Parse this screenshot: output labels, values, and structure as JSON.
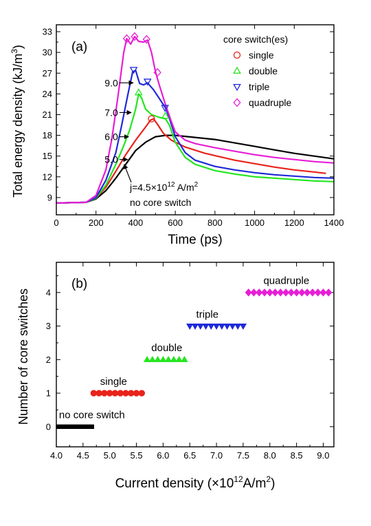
{
  "chart_data": [
    {
      "type": "line",
      "panel_label": "(a)",
      "xlabel": "Time (ps)",
      "ylabel": "Total energy density (kJ/m",
      "ylabel_sup": "3",
      "ylabel_close": ")",
      "xlim": [
        0,
        1400
      ],
      "ylim": [
        6.5,
        34
      ],
      "xticks": [
        0,
        200,
        400,
        600,
        800,
        1000,
        1200,
        1400
      ],
      "yticks": [
        9,
        12,
        15,
        18,
        21,
        24,
        27,
        30,
        33
      ],
      "legend_title": "core switch(es)",
      "legend_position": "top-right",
      "series": [
        {
          "name": "",
          "color": "#000000",
          "marker": "none",
          "x": [
            0,
            150,
            200,
            250,
            300,
            350,
            400,
            450,
            500,
            550,
            600,
            700,
            800,
            900,
            1000,
            1100,
            1200,
            1300,
            1400
          ],
          "y": [
            8.2,
            8.3,
            8.8,
            10.0,
            11.8,
            13.8,
            15.8,
            17.0,
            17.8,
            18.0,
            18.0,
            17.7,
            17.4,
            16.9,
            16.4,
            15.9,
            15.4,
            15.0,
            14.6
          ]
        },
        {
          "name": "single",
          "color": "#e8231a",
          "marker": "circle",
          "x": [
            0,
            150,
            200,
            250,
            300,
            350,
            400,
            450,
            475,
            490,
            510,
            540,
            580,
            650,
            750,
            900,
            1000,
            1100,
            1200,
            1300,
            1360
          ],
          "y": [
            8.2,
            8.3,
            8.9,
            10.5,
            12.8,
            15.2,
            17.3,
            19.2,
            20.2,
            20.4,
            19.6,
            18.3,
            17.3,
            16.3,
            15.4,
            14.4,
            13.9,
            13.4,
            13.0,
            12.7,
            12.5
          ],
          "marker_x": [
            480
          ],
          "marker_y": [
            20.4
          ]
        },
        {
          "name": "double",
          "color": "#22e61e",
          "marker": "triangle-up",
          "x": [
            0,
            150,
            200,
            250,
            300,
            340,
            370,
            400,
            415,
            430,
            450,
            480,
            520,
            550,
            570,
            600,
            650,
            700,
            800,
            900,
            1000,
            1100,
            1200,
            1300,
            1400
          ],
          "y": [
            8.2,
            8.3,
            8.9,
            10.8,
            13.8,
            16.5,
            18.8,
            21.8,
            24.0,
            23.4,
            21.8,
            21.0,
            20.6,
            20.4,
            19.5,
            17.0,
            14.8,
            13.8,
            12.9,
            12.4,
            12.0,
            11.8,
            11.6,
            11.4,
            11.3
          ],
          "marker_x": [
            415,
            550
          ],
          "marker_y": [
            24.2,
            20.8
          ]
        },
        {
          "name": "triple",
          "color": "#1f2ad8",
          "marker": "triangle-down",
          "x": [
            0,
            150,
            200,
            250,
            300,
            330,
            360,
            385,
            400,
            420,
            440,
            460,
            490,
            520,
            550,
            570,
            600,
            650,
            700,
            800,
            900,
            1000,
            1100,
            1200,
            1300,
            1400
          ],
          "y": [
            8.2,
            8.3,
            9.0,
            11.5,
            15.5,
            19.5,
            23.8,
            27.2,
            27.4,
            25.5,
            25.3,
            25.6,
            24.6,
            23.3,
            22.0,
            20.5,
            17.8,
            15.5,
            14.4,
            13.5,
            13.0,
            12.6,
            12.3,
            12.1,
            11.9,
            11.8
          ],
          "marker_x": [
            390,
            460,
            548
          ],
          "marker_y": [
            27.5,
            25.8,
            22.0
          ]
        },
        {
          "name": "quadruple",
          "color": "#e61ed6",
          "marker": "diamond",
          "x": [
            0,
            150,
            200,
            250,
            280,
            310,
            340,
            355,
            375,
            395,
            415,
            440,
            460,
            480,
            500,
            520,
            550,
            580,
            600,
            650,
            700,
            800,
            900,
            1000,
            1100,
            1200,
            1300,
            1400
          ],
          "y": [
            8.2,
            8.3,
            9.3,
            13.0,
            17.5,
            23.5,
            30.0,
            32.0,
            31.2,
            32.3,
            31.6,
            31.5,
            31.8,
            30.0,
            27.2,
            25.2,
            22.5,
            20.0,
            18.5,
            17.3,
            16.8,
            16.2,
            15.7,
            15.2,
            14.8,
            14.5,
            14.2,
            14.0
          ],
          "marker_x": [
            355,
            395,
            455,
            510
          ],
          "marker_y": [
            32.0,
            32.3,
            31.9,
            27.1
          ]
        }
      ],
      "annotations": [
        {
          "text": "9.0",
          "x": 318,
          "y": 25.6,
          "arrow_to_x": 388,
          "arrow_to_y": 25.6
        },
        {
          "text": "7.0",
          "x": 318,
          "y": 21.3,
          "arrow_to_x": 378,
          "arrow_to_y": 21.3
        },
        {
          "text": "6.0",
          "x": 318,
          "y": 17.8,
          "arrow_to_x": 365,
          "arrow_to_y": 17.8
        },
        {
          "text": "5.0",
          "x": 318,
          "y": 14.5,
          "arrow_to_x": 360,
          "arrow_to_y": 14.5
        },
        {
          "text_prefix": "j=4.5×10",
          "text_sup": "12",
          "text_mid": " A/m",
          "text_sup2": "2",
          "line2": "no core switch",
          "x": 440,
          "y": 10.5,
          "arrow_from_x": 440,
          "arrow_from_y": 11.0,
          "arrow_to_x": 342,
          "arrow_to_y": 13.8
        }
      ]
    },
    {
      "type": "scatter",
      "panel_label": "(b)",
      "xlabel_prefix": "Current density (",
      "xlabel_times": "×10",
      "xlabel_sup": "12",
      "xlabel_mid": "A/m",
      "xlabel_sup2": "2",
      "xlabel_close": ")",
      "ylabel": "Number of core switches",
      "xlim": [
        4.0,
        9.2
      ],
      "ylim": [
        -0.6,
        4.9
      ],
      "xticks": [
        4.0,
        4.5,
        5.0,
        5.5,
        6.0,
        6.5,
        7.0,
        7.5,
        8.0,
        8.5,
        9.0
      ],
      "xtick_labels": [
        "4.0",
        "4.5",
        "5.0",
        "5.5",
        "6.0",
        "6.5",
        "7.0",
        "7.5",
        "8.0",
        "8.5",
        "9.0"
      ],
      "yticks": [
        0,
        1,
        2,
        3,
        4
      ],
      "series": [
        {
          "name": "no core switch",
          "color": "#000000",
          "marker": "square",
          "y": 0,
          "x": [
            4.05,
            4.1,
            4.15,
            4.2,
            4.25,
            4.3,
            4.35,
            4.4,
            4.45,
            4.5,
            4.55,
            4.6,
            4.65
          ],
          "label_x": 4.05,
          "label_y": 0.25
        },
        {
          "name": "single",
          "color": "#e8231a",
          "marker": "circle",
          "y": 1,
          "x": [
            4.7,
            4.8,
            4.9,
            5.0,
            5.1,
            5.2,
            5.3,
            5.4,
            5.5,
            5.6
          ],
          "label_x": 4.82,
          "label_y": 1.25
        },
        {
          "name": "double",
          "color": "#22e61e",
          "marker": "triangle-up",
          "y": 2,
          "x": [
            5.7,
            5.8,
            5.9,
            6.0,
            6.1,
            6.2,
            6.3,
            6.4
          ],
          "label_x": 5.78,
          "label_y": 2.25
        },
        {
          "name": "triple",
          "color": "#1f2ad8",
          "marker": "triangle-down",
          "y": 3,
          "x": [
            6.5,
            6.6,
            6.7,
            6.8,
            6.9,
            7.0,
            7.1,
            7.2,
            7.3,
            7.4,
            7.5
          ],
          "label_x": 6.62,
          "label_y": 3.25
        },
        {
          "name": "quadruple",
          "color": "#e61ed6",
          "marker": "diamond",
          "y": 4,
          "x": [
            7.6,
            7.7,
            7.8,
            7.9,
            8.0,
            8.1,
            8.2,
            8.3,
            8.4,
            8.5,
            8.6,
            8.7,
            8.8,
            8.9,
            9.0,
            9.1
          ],
          "label_x": 7.88,
          "label_y": 4.25
        }
      ]
    }
  ]
}
